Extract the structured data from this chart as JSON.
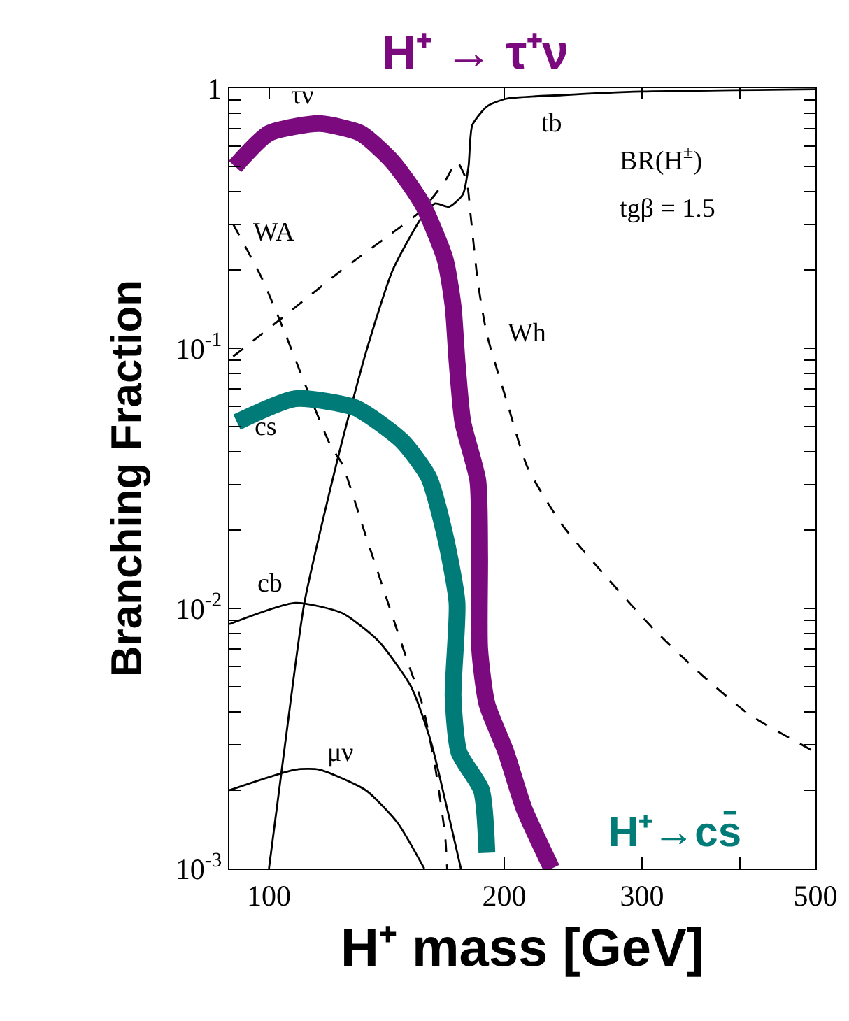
{
  "chart_data": {
    "type": "line",
    "xlabel": "H⁺ mass [GeV]",
    "ylabel": "Branching Fraction",
    "log": "xy",
    "grid": false,
    "legend": false,
    "marker": "none",
    "xlim": [
      89,
      500
    ],
    "ylim": [
      0.001,
      1
    ],
    "xticks": [
      100,
      200,
      300,
      {
        "value": 400,
        "label": null
      },
      500
    ],
    "yticks": [
      {
        "value": 0.001,
        "label": "10$^{-3}$"
      },
      {
        "value": 0.002,
        "label": null
      },
      {
        "value": 0.003,
        "label": null
      },
      {
        "value": 0.004,
        "label": null
      },
      {
        "value": 0.005,
        "label": null
      },
      {
        "value": 0.006,
        "label": null
      },
      {
        "value": 0.007,
        "label": null
      },
      {
        "value": 0.008,
        "label": null
      },
      {
        "value": 0.009,
        "label": null
      },
      {
        "value": 0.01,
        "label": "10$^{-2}$"
      },
      {
        "value": 0.02,
        "label": null
      },
      {
        "value": 0.03,
        "label": null
      },
      {
        "value": 0.04,
        "label": null
      },
      {
        "value": 0.05,
        "label": null
      },
      {
        "value": 0.06,
        "label": null
      },
      {
        "value": 0.07,
        "label": null
      },
      {
        "value": 0.08,
        "label": null
      },
      {
        "value": 0.09,
        "label": null
      },
      {
        "value": 0.1,
        "label": "10$^{-1}$"
      },
      {
        "value": 0.2,
        "label": null
      },
      {
        "value": 0.3,
        "label": null
      },
      {
        "value": 0.4,
        "label": null
      },
      {
        "value": 0.5,
        "label": null
      },
      {
        "value": 0.6,
        "label": null
      },
      {
        "value": 0.7,
        "label": null
      },
      {
        "value": 0.8,
        "label": null
      },
      {
        "value": 0.9,
        "label": null
      },
      1
    ],
    "series": [
      {
        "name": "tb",
        "color": "#000000",
        "line_style": "solid",
        "x": [
          100,
          105,
          111,
          122,
          133,
          144,
          157,
          163,
          170,
          177,
          180,
          182,
          190,
          201,
          237,
          300,
          500
        ],
        "values": [
          0.001,
          0.0031,
          0.0105,
          0.036,
          0.096,
          0.2,
          0.32,
          0.36,
          0.35,
          0.39,
          0.5,
          0.72,
          0.85,
          0.91,
          0.94,
          0.97,
          0.99
        ]
      },
      {
        "name": "WA",
        "color": "#000000",
        "line_style": "dashed",
        "x": [
          90,
          98,
          105,
          112,
          120,
          124,
          133,
          142,
          150,
          157,
          163,
          168,
          169
        ],
        "values": [
          0.3,
          0.185,
          0.113,
          0.069,
          0.042,
          0.036,
          0.019,
          0.0105,
          0.0064,
          0.0043,
          0.0025,
          0.00134,
          0.001
        ]
      },
      {
        "name": "Wh",
        "color": "#000000",
        "line_style": "dashed",
        "x": [
          90,
          103,
          124,
          142,
          157,
          168,
          174,
          179,
          181,
          185,
          190,
          201,
          214,
          237,
          272,
          312,
          359,
          412,
          500
        ],
        "values": [
          0.093,
          0.128,
          0.2,
          0.27,
          0.34,
          0.44,
          0.52,
          0.44,
          0.33,
          0.18,
          0.113,
          0.064,
          0.035,
          0.021,
          0.0129,
          0.0082,
          0.0055,
          0.0039,
          0.0028
        ]
      },
      {
        "name": "cb",
        "color": "#000000",
        "line_style": "solid",
        "x": [
          89,
          108,
          124,
          138,
          152,
          161,
          169,
          176
        ],
        "values": [
          0.0087,
          0.0105,
          0.0096,
          0.0075,
          0.005,
          0.0031,
          0.0017,
          0.001
        ]
      },
      {
        "name": "μν",
        "color": "#000000",
        "line_style": "solid",
        "x": [
          89,
          108,
          116,
          133,
          146,
          158
        ],
        "values": [
          0.002,
          0.0024,
          0.0024,
          0.002,
          0.0015,
          0.001
        ]
      },
      {
        "name": "H⁺→cs̄",
        "color": "#007b78",
        "line_style": "solid",
        "x": [
          91,
          108,
          129,
          148,
          160,
          168,
          174,
          172,
          175,
          187,
          190
        ],
        "values": [
          0.052,
          0.064,
          0.059,
          0.044,
          0.032,
          0.019,
          0.0105,
          0.0046,
          0.0028,
          0.002,
          0.00115
        ]
      },
      {
        "name": "H⁺ → τ⁺ν",
        "color": "#7b0a7e",
        "line_style": "solid",
        "x": [
          90.5,
          100,
          116,
          131,
          144,
          157,
          168,
          172,
          174,
          177,
          185,
          186,
          186,
          190,
          201,
          212,
          230
        ],
        "values": [
          0.5,
          0.67,
          0.73,
          0.67,
          0.52,
          0.36,
          0.22,
          0.145,
          0.089,
          0.052,
          0.031,
          0.0158,
          0.007,
          0.0043,
          0.0028,
          0.0017,
          0.001
        ]
      }
    ],
    "annotations": [
      "τν",
      "cs",
      "BR(H$^{±}$)",
      "tgβ = 1.5"
    ]
  }
}
